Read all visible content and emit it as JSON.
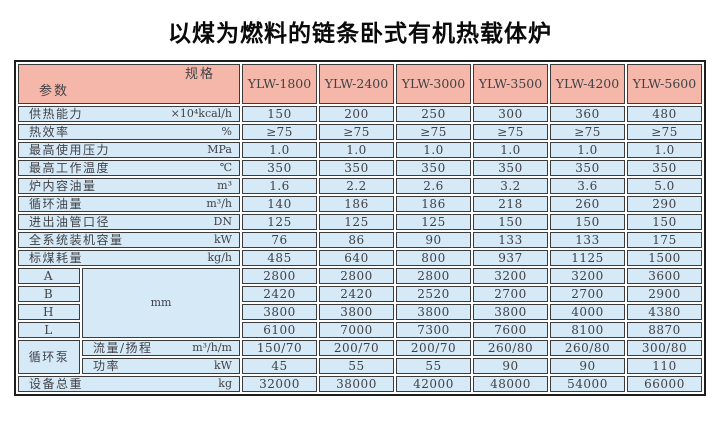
{
  "title": "以煤为燃料的链条卧式有机热载体炉",
  "colors": {
    "header_bg": "#f4b7a9",
    "row_bg": "#d6e9f7",
    "border": "#2b2b2b",
    "text": "#414246"
  },
  "table": {
    "corner": {
      "spec": "规格",
      "param": "参数"
    },
    "models": [
      "YLW-1800",
      "YLW-2400",
      "YLW-3000",
      "YLW-3500",
      "YLW-4200",
      "YLW-5600"
    ],
    "rows_top": [
      {
        "label": "供热能力",
        "unit": "×10⁴kcal/h",
        "values": [
          "150",
          "200",
          "250",
          "300",
          "360",
          "480"
        ]
      },
      {
        "label": "热效率",
        "unit": "%",
        "values": [
          "≥75",
          "≥75",
          "≥75",
          "≥75",
          "≥75",
          "≥75"
        ]
      },
      {
        "label": "最高使用压力",
        "unit": "MPa",
        "values": [
          "1.0",
          "1.0",
          "1.0",
          "1.0",
          "1.0",
          "1.0"
        ]
      },
      {
        "label": "最高工作温度",
        "unit": "℃",
        "values": [
          "350",
          "350",
          "350",
          "350",
          "350",
          "350"
        ]
      },
      {
        "label": "炉内容油量",
        "unit": "m³",
        "values": [
          "1.6",
          "2.2",
          "2.6",
          "3.2",
          "3.6",
          "5.0"
        ]
      },
      {
        "label": "循环油量",
        "unit": "m³/h",
        "values": [
          "140",
          "186",
          "186",
          "218",
          "260",
          "290"
        ]
      },
      {
        "label": "进出油管口径",
        "unit": "DN",
        "values": [
          "125",
          "125",
          "125",
          "150",
          "150",
          "150"
        ]
      },
      {
        "label": "全系统装机容量",
        "unit": "kW",
        "values": [
          "76",
          "86",
          "90",
          "133",
          "133",
          "175"
        ]
      },
      {
        "label": "标煤耗量",
        "unit": "kg/h",
        "values": [
          "485",
          "640",
          "800",
          "937",
          "1125",
          "1500"
        ]
      }
    ],
    "dims": {
      "unit": "mm",
      "rows": [
        {
          "label": "A",
          "values": [
            "2800",
            "2800",
            "2800",
            "3200",
            "3200",
            "3600"
          ]
        },
        {
          "label": "B",
          "values": [
            "2420",
            "2420",
            "2520",
            "2700",
            "2700",
            "2900"
          ]
        },
        {
          "label": "H",
          "values": [
            "3800",
            "3800",
            "3800",
            "3800",
            "4000",
            "4380"
          ]
        },
        {
          "label": "L",
          "values": [
            "6100",
            "7000",
            "7300",
            "7600",
            "8100",
            "8870"
          ]
        }
      ]
    },
    "pump": {
      "label": "循环泵",
      "rows": [
        {
          "label": "流量/扬程",
          "unit": "m³/h/m",
          "values": [
            "150/70",
            "200/70",
            "200/70",
            "260/80",
            "260/80",
            "300/80"
          ]
        },
        {
          "label": "功率",
          "unit": "kW",
          "values": [
            "45",
            "55",
            "55",
            "90",
            "90",
            "110"
          ]
        }
      ]
    },
    "total": {
      "label": "设备总重",
      "unit": "kg",
      "values": [
        "32000",
        "38000",
        "42000",
        "48000",
        "54000",
        "66000"
      ]
    }
  }
}
